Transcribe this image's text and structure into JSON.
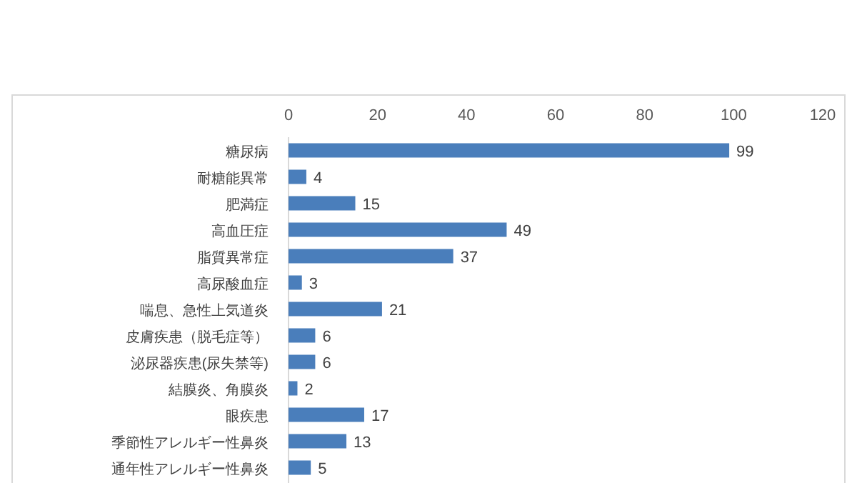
{
  "chart_data": {
    "type": "bar",
    "orientation": "horizontal",
    "categories": [
      "糖尿病",
      "耐糖能異常",
      "肥満症",
      "高血圧症",
      "脂質異常症",
      "高尿酸血症",
      "喘息、急性上気道炎",
      "皮膚疾患（脱毛症等）",
      "泌尿器疾患(尿失禁等)",
      "結膜炎、角膜炎",
      "眼疾患",
      "季節性アレルギー性鼻炎",
      "通年性アレルギー性鼻炎"
    ],
    "values": [
      99,
      4,
      15,
      49,
      37,
      3,
      21,
      6,
      6,
      2,
      17,
      13,
      5
    ],
    "color": "#4a7ebb",
    "xlim": [
      0,
      120
    ],
    "xticks": [
      0,
      20,
      40,
      60,
      80,
      100,
      120
    ],
    "data_labels": true
  }
}
